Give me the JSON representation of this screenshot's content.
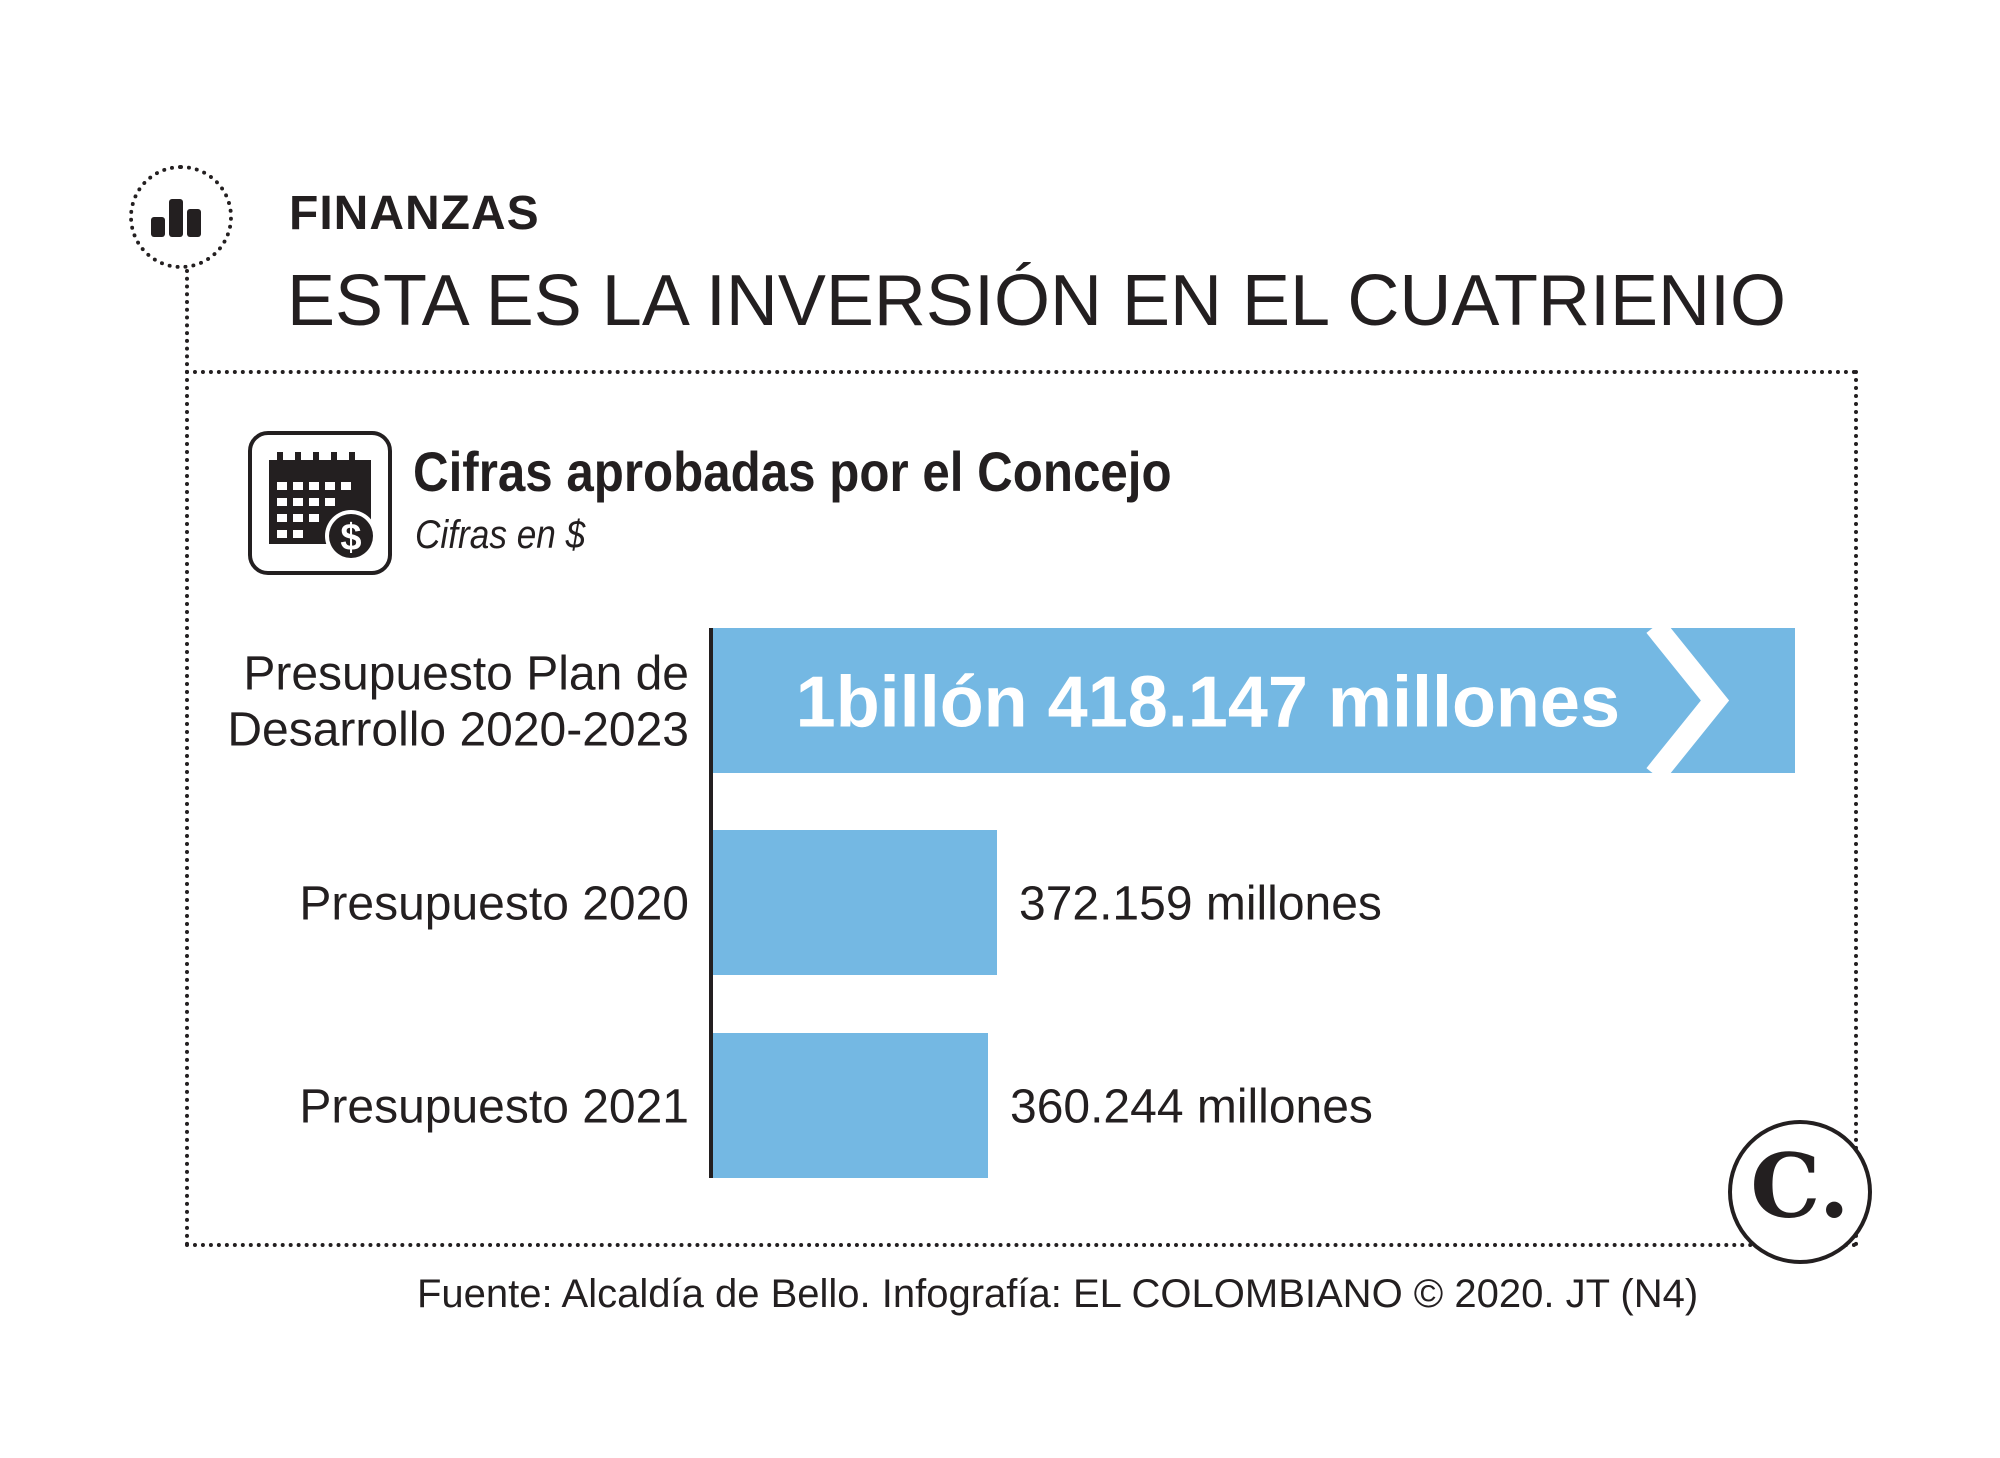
{
  "header": {
    "section": "FINANZAS",
    "headline": "ESTA ES LA INVERSIÓN EN EL CUATRIENIO"
  },
  "chart_header": {
    "title": "Cifras aprobadas por el Concejo",
    "subtitle": "Cifras en $"
  },
  "chart_data": {
    "type": "bar",
    "orientation": "horizontal",
    "categories": [
      [
        "Presupuesto Plan de",
        "Desarrollo 2020-2023"
      ],
      [
        "Presupuesto 2020"
      ],
      [
        "Presupuesto 2021"
      ]
    ],
    "values": [
      1418147,
      372159,
      360244
    ],
    "value_unit": "millones",
    "labels": [
      "1billón 418.147 millones",
      "372.159 millones",
      "360.244 millones"
    ],
    "axis_break_on_first_bar": true,
    "title": "Cifras aprobadas por el Concejo",
    "subtitle": "Cifras en $",
    "xlabel": "",
    "ylabel": "",
    "grid": false,
    "legend": "none"
  },
  "colors": {
    "bar": "#74b8e3",
    "text": "#231f20",
    "bar_label_inside": "#ffffff"
  },
  "icons": {
    "section": "bar-chart-icon",
    "chart": "calendar-dollar-icon",
    "logo": "el-colombiano-logo"
  },
  "logo": {
    "letter": "C."
  },
  "source": "Fuente: Alcaldía de Bello. Infografía: EL COLOMBIANO © 2020. JT (N4)"
}
